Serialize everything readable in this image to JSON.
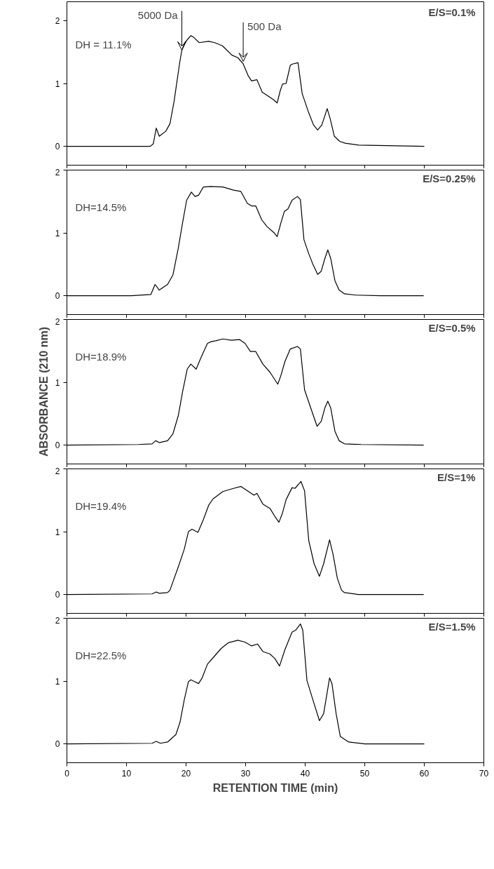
{
  "chart_data": [
    {
      "type": "line",
      "color": "#000000",
      "xlim": [
        0,
        70
      ],
      "ylim": [
        -0.3,
        2.3
      ],
      "xticks": [
        0,
        10,
        20,
        30,
        40,
        50,
        60,
        70
      ],
      "yticks": [
        0,
        1,
        2
      ],
      "tick_labels": "y",
      "annotations": [
        "DH = 11.1%",
        "E/S=0.1%",
        {
          "text": "5000 Da",
          "x": 19.3,
          "y": 1.53
        },
        {
          "text": "500 Da",
          "x": 29.6,
          "y": 1.35
        }
      ],
      "x": [
        0,
        14,
        14.5,
        15.0,
        15.5,
        16.6,
        17.3,
        18.0,
        18.9,
        19.3,
        19.8,
        20.8,
        21.2,
        22.2,
        23.8,
        24.8,
        26.1,
        27.7,
        28.7,
        29.6,
        30.4,
        31.0,
        31.9,
        32.8,
        33.8,
        34.7,
        35.3,
        35.8,
        36.2,
        36.8,
        37.5,
        37.9,
        38.8,
        39.5,
        40.5,
        41.4,
        42.1,
        42.8,
        43.7,
        44.2,
        44.9,
        45.8,
        46.7,
        49.0,
        60
      ],
      "values": [
        0,
        0,
        0.04,
        0.29,
        0.16,
        0.24,
        0.36,
        0.72,
        1.31,
        1.53,
        1.65,
        1.76,
        1.74,
        1.65,
        1.67,
        1.65,
        1.6,
        1.45,
        1.41,
        1.31,
        1.13,
        1.04,
        1.06,
        0.86,
        0.8,
        0.74,
        0.69,
        0.88,
        0.99,
        1.0,
        1.29,
        1.31,
        1.33,
        0.84,
        0.56,
        0.34,
        0.26,
        0.34,
        0.6,
        0.44,
        0.16,
        0.08,
        0.05,
        0.02,
        0
      ]
    },
    {
      "type": "line",
      "color": "#000000",
      "xlim": [
        0,
        70
      ],
      "ylim": [
        -0.3,
        2
      ],
      "xticks": [
        0,
        10,
        20,
        30,
        40,
        50,
        60,
        70
      ],
      "yticks": [
        0,
        1,
        2
      ],
      "tick_labels": "y",
      "annotations": [
        "DH=14.5%",
        "E/S=0.25%"
      ],
      "x": [
        0,
        10.8,
        14.1,
        14.8,
        15.5,
        16.9,
        17.8,
        18.7,
        19.4,
        20.1,
        20.9,
        21.5,
        22.1,
        22.9,
        24.1,
        26.2,
        28.0,
        29.2,
        30.3,
        31.0,
        31.7,
        32.7,
        33.6,
        34.8,
        35.3,
        35.9,
        36.5,
        37.1,
        37.8,
        38.7,
        39.2,
        39.8,
        40.6,
        41.3,
        42.1,
        42.7,
        43.3,
        43.8,
        44.3,
        45.0,
        45.7,
        46.6,
        48.5,
        52.6,
        59.9
      ],
      "values": [
        0,
        0,
        0.02,
        0.18,
        0.09,
        0.18,
        0.33,
        0.76,
        1.15,
        1.52,
        1.65,
        1.58,
        1.6,
        1.73,
        1.74,
        1.73,
        1.68,
        1.66,
        1.47,
        1.43,
        1.43,
        1.21,
        1.1,
        1.0,
        0.94,
        1.15,
        1.34,
        1.38,
        1.52,
        1.58,
        1.53,
        0.89,
        0.67,
        0.5,
        0.34,
        0.39,
        0.59,
        0.73,
        0.59,
        0.24,
        0.09,
        0.03,
        0.01,
        0,
        0
      ]
    },
    {
      "type": "line",
      "color": "#000000",
      "xlim": [
        0,
        70
      ],
      "ylim": [
        -0.3,
        2
      ],
      "xticks": [
        0,
        10,
        20,
        30,
        40,
        50,
        60,
        70
      ],
      "yticks": [
        0,
        1,
        2
      ],
      "tick_labels": "y",
      "ylabel": "ABSORBANCE (210 nm)",
      "annotations": [
        "DH=18.9%",
        "E/S=0.5%"
      ],
      "x": [
        0,
        12,
        14.3,
        14.9,
        15.5,
        16.9,
        17.8,
        18.7,
        19.4,
        20.2,
        20.8,
        21.7,
        22.4,
        23.6,
        24.3,
        25.0,
        26.2,
        27.6,
        29.0,
        29.9,
        30.8,
        31.7,
        32.9,
        34.1,
        35.4,
        35.9,
        36.6,
        37.5,
        38.7,
        39.2,
        39.9,
        40.8,
        42.0,
        42.7,
        43.3,
        43.8,
        44.3,
        45.0,
        45.7,
        46.6,
        49.4,
        59.9
      ],
      "values": [
        0,
        0.01,
        0.02,
        0.07,
        0.04,
        0.07,
        0.18,
        0.47,
        0.84,
        1.21,
        1.29,
        1.21,
        1.37,
        1.62,
        1.65,
        1.66,
        1.69,
        1.67,
        1.68,
        1.62,
        1.49,
        1.49,
        1.29,
        1.16,
        0.97,
        1.1,
        1.33,
        1.53,
        1.57,
        1.53,
        0.88,
        0.63,
        0.3,
        0.38,
        0.59,
        0.7,
        0.59,
        0.22,
        0.07,
        0.02,
        0.01,
        0
      ]
    },
    {
      "type": "line",
      "color": "#000000",
      "xlim": [
        0,
        70
      ],
      "ylim": [
        -0.3,
        2
      ],
      "xticks": [
        0,
        10,
        20,
        30,
        40,
        50,
        60,
        70
      ],
      "yticks": [
        0,
        1,
        2
      ],
      "tick_labels": "y",
      "annotations": [
        "DH=19.4%",
        "E/S=1%"
      ],
      "x": [
        0,
        14.3,
        15,
        15.5,
        16.9,
        17.3,
        18.7,
        19.7,
        20.4,
        21.0,
        22.0,
        22.9,
        23.8,
        24.5,
        26.2,
        28.0,
        29.2,
        30.3,
        31.4,
        31.9,
        32.9,
        34.1,
        35.0,
        35.6,
        36.2,
        36.8,
        37.8,
        38.3,
        39.3,
        39.9,
        40.6,
        41.5,
        42.4,
        43.1,
        44.1,
        44.7,
        45.4,
        46.1,
        46.6,
        48.9,
        59.9
      ],
      "values": [
        0,
        0.01,
        0.04,
        0.02,
        0.03,
        0.07,
        0.44,
        0.72,
        1.0,
        1.04,
        0.99,
        1.19,
        1.42,
        1.52,
        1.64,
        1.69,
        1.72,
        1.65,
        1.58,
        1.61,
        1.44,
        1.37,
        1.23,
        1.15,
        1.3,
        1.51,
        1.7,
        1.69,
        1.8,
        1.65,
        0.86,
        0.49,
        0.29,
        0.49,
        0.87,
        0.63,
        0.26,
        0.07,
        0.03,
        0,
        0
      ]
    },
    {
      "type": "line",
      "color": "#000000",
      "xlim": [
        0,
        70
      ],
      "ylim": [
        -0.3,
        2
      ],
      "xticks": [
        0,
        10,
        20,
        30,
        40,
        50,
        60,
        70
      ],
      "yticks": [
        0,
        1,
        2
      ],
      "xlabel": "RETENTION TIME (min)",
      "annotations": [
        "DH=22.5%",
        "E/S=1.5%"
      ],
      "x": [
        0,
        14.3,
        15.0,
        15.7,
        16.9,
        18.3,
        19.0,
        19.7,
        20.4,
        20.8,
        21.5,
        22.1,
        22.7,
        23.6,
        24.8,
        25.9,
        27.1,
        28.7,
        29.9,
        31.0,
        32.0,
        32.9,
        34.1,
        34.9,
        35.7,
        36.6,
        37.8,
        38.4,
        39.2,
        39.6,
        40.3,
        41.3,
        42.4,
        43.1,
        44.1,
        44.5,
        45.2,
        45.9,
        47.3,
        50.0,
        60
      ],
      "values": [
        0,
        0.01,
        0.04,
        0.01,
        0.03,
        0.15,
        0.35,
        0.7,
        0.99,
        1.02,
        0.99,
        0.96,
        1.05,
        1.27,
        1.4,
        1.52,
        1.61,
        1.65,
        1.62,
        1.56,
        1.59,
        1.47,
        1.43,
        1.36,
        1.24,
        1.5,
        1.78,
        1.81,
        1.91,
        1.81,
        1.01,
        0.7,
        0.37,
        0.48,
        1.05,
        0.96,
        0.48,
        0.12,
        0.03,
        0,
        0
      ]
    }
  ]
}
